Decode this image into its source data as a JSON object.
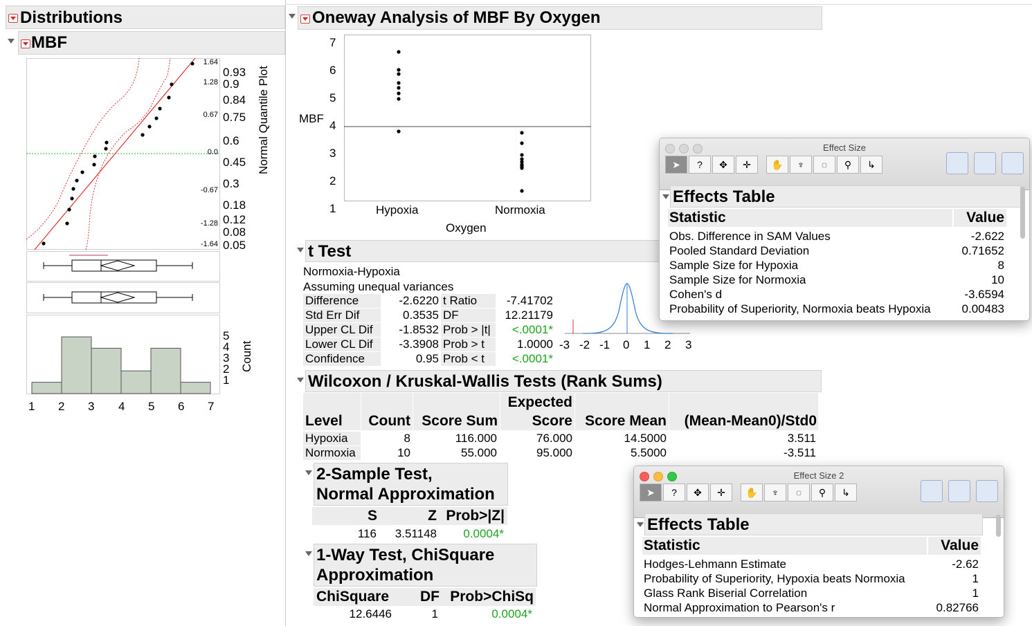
{
  "distributions": {
    "title": "Distributions",
    "var_title": "MBF",
    "nqp_label": "Normal Quantile Plot",
    "count_label": "Count",
    "quantile_labels": [
      "1.64",
      "1.28",
      "0.67",
      "0.0",
      "-0.67",
      "-1.28",
      "-1.64"
    ],
    "prob_labels": [
      "0.93",
      "0.9",
      "0.84",
      "0.75",
      "0.6",
      "0.45",
      "0.3",
      "0.18",
      "0.12",
      "0.08",
      "0.05"
    ],
    "count_ticks": [
      "5",
      "4",
      "3",
      "2",
      "1"
    ],
    "x_ticks": [
      "1",
      "2",
      "3",
      "4",
      "5",
      "6",
      "7"
    ]
  },
  "oneway": {
    "title": "Oneway Analysis of MBF By Oxygen",
    "y_label": "MBF",
    "x_label": "Oxygen",
    "y_ticks": [
      "7",
      "6",
      "5",
      "4",
      "3",
      "2",
      "1"
    ],
    "groups": [
      "Hypoxia",
      "Normoxia"
    ]
  },
  "ttest": {
    "title": "t Test",
    "line1": "Normoxia-Hypoxia",
    "line2": "Assuming unequal variances",
    "rows": [
      {
        "label": "Difference",
        "value": "-2.6220",
        "stat": "t Ratio",
        "stat_value": "-7.41702"
      },
      {
        "label": "Std Err Dif",
        "value": "0.3535",
        "stat": "DF",
        "stat_value": "12.21179"
      },
      {
        "label": "Upper CL Dif",
        "value": "-1.8532",
        "stat": "Prob > |t|",
        "stat_value": "<.0001*"
      },
      {
        "label": "Lower CL Dif",
        "value": "-3.3908",
        "stat": "Prob > t",
        "stat_value": "1.0000"
      },
      {
        "label": "Confidence",
        "value": "0.95",
        "stat": "Prob < t",
        "stat_value": "<.0001*"
      }
    ],
    "dist_ticks": [
      "-3",
      "-2",
      "-1",
      "0",
      "1",
      "2",
      "3"
    ]
  },
  "wilcoxon": {
    "title": "Wilcoxon / Kruskal-Wallis Tests (Rank Sums)",
    "headers": {
      "level": "Level",
      "count": "Count",
      "score_sum": "Score Sum",
      "expected_top": "Expected",
      "expected_bottom": "Score",
      "score_mean": "Score Mean",
      "std0": "(Mean-Mean0)/Std0"
    },
    "rows": [
      {
        "level": "Hypoxia",
        "count": "8",
        "score_sum": "116.000",
        "expected": "76.000",
        "score_mean": "14.5000",
        "std0": "3.511"
      },
      {
        "level": "Normoxia",
        "count": "10",
        "score_sum": "55.000",
        "expected": "95.000",
        "score_mean": "5.5000",
        "std0": "-3.511"
      }
    ]
  },
  "two_sample": {
    "title_line1": "2-Sample Test,",
    "title_line2": "Normal Approximation",
    "headers": {
      "s": "S",
      "z": "Z",
      "p": "Prob>|Z|"
    },
    "values": {
      "s": "116",
      "z": "3.51148",
      "p": "0.0004*"
    }
  },
  "one_way_chi": {
    "title_line1": "1-Way Test, ChiSquare",
    "title_line2": "Approximation",
    "headers": {
      "chi": "ChiSquare",
      "df": "DF",
      "p": "Prob>ChiSq"
    },
    "values": {
      "chi": "12.6446",
      "df": "1",
      "p": "0.0004*"
    }
  },
  "effect_size": {
    "window_title": "Effect Size",
    "table_title": "Effects Table",
    "col_stat": "Statistic",
    "col_value": "Value",
    "rows": [
      {
        "stat": "Obs. Difference in SAM Values",
        "value": "-2.622"
      },
      {
        "stat": "Pooled Standard Deviation",
        "value": "0.71652"
      },
      {
        "stat": "Sample Size for Hypoxia",
        "value": "8"
      },
      {
        "stat": "Sample Size for Normoxia",
        "value": "10"
      },
      {
        "stat": "Cohen's d",
        "value": "-3.6594"
      },
      {
        "stat": "Probability of Superiority, Normoxia beats Hypoxia",
        "value": "0.00483"
      }
    ]
  },
  "effect_size_2": {
    "window_title": "Effect Size 2",
    "table_title": "Effects Table",
    "col_stat": "Statistic",
    "col_value": "Value",
    "rows": [
      {
        "stat": "Hodges-Lehmann Estimate",
        "value": "-2.62"
      },
      {
        "stat": "Probability of Superiority, Hypoxia beats Normoxia",
        "value": "1"
      },
      {
        "stat": "Glass Rank Biserial Correlation",
        "value": "1"
      },
      {
        "stat": "Normal Approximation to Pearson's r",
        "value": "0.82766"
      }
    ]
  },
  "toolbar_tools": [
    "arrow-tool",
    "help-tool",
    "selection-tool",
    "crosshair-tool",
    "grabber-tool",
    "brush-tool",
    "lasso-tool",
    "magnifier-tool",
    "annotate-tool"
  ],
  "colors": {
    "accent_red": "#e0302f",
    "green": "#1aa51a",
    "hist_fill": "#c8d3c5",
    "blue_curve": "#3a7fd6"
  }
}
